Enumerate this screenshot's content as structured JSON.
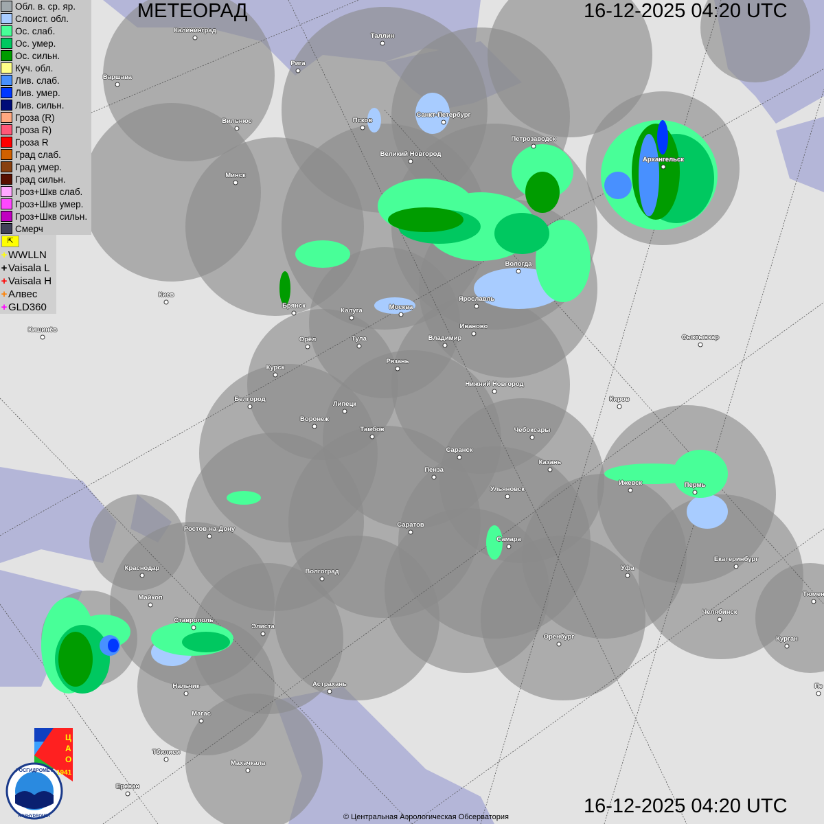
{
  "header": {
    "title": "МЕТЕОРАД",
    "timestamp_top": "16-12-2025  04:20 UTC",
    "timestamp_bottom": "16-12-2025  04:20 UTC"
  },
  "legend": [
    {
      "label": "Обл. в. ср. яр.",
      "color": "#a0a8ac"
    },
    {
      "label": "Слоист. обл.",
      "color": "#a8ccff"
    },
    {
      "label": "Ос. слаб.",
      "color": "#48ff98"
    },
    {
      "label": "Ос. умер.",
      "color": "#00c860"
    },
    {
      "label": "Ос. сильн.",
      "color": "#009c00"
    },
    {
      "label": "Куч. обл.",
      "color": "#ffff88"
    },
    {
      "label": "Лив. слаб.",
      "color": "#4890ff"
    },
    {
      "label": "Лив. умер.",
      "color": "#0038ff"
    },
    {
      "label": "Лив. сильн.",
      "color": "#000c78"
    },
    {
      "label": "Гроза (R)",
      "color": "#ffa880"
    },
    {
      "label": "Гроза R)",
      "color": "#ff5878"
    },
    {
      "label": "Гроза R",
      "color": "#ff0000"
    },
    {
      "label": "Град слаб.",
      "color": "#d06000"
    },
    {
      "label": "Град умер.",
      "color": "#884010"
    },
    {
      "label": "Град сильн.",
      "color": "#581000"
    },
    {
      "label": "Гроз+Шкв слаб.",
      "color": "#ffa8ff"
    },
    {
      "label": "Гроз+Шкв умер.",
      "color": "#ff48ff"
    },
    {
      "label": "Гроз+Шкв сильн.",
      "color": "#c000c0"
    },
    {
      "label": "Смерч",
      "color": "#404058"
    }
  ],
  "lightning_flag_icon": "flag-icon",
  "lightning": [
    {
      "label": "WWLLN",
      "color": "#ffff00"
    },
    {
      "label": "Vaisala L",
      "color": "#000000"
    },
    {
      "label": "Vaisala H",
      "color": "#ff0000"
    },
    {
      "label": "Алвес",
      "color": "#ff8000"
    },
    {
      "label": "GLD360",
      "color": "#ff00ff"
    }
  ],
  "cities": [
    "Калининград",
    "Таллин",
    "Рига",
    "Варшава",
    "Вильнюс",
    "Псков",
    "Санкт-Петербург",
    "Великий Новгород",
    "Петрозаводск",
    "Архангельск",
    "Минск",
    "Вологда",
    "Брянск",
    "Калуга",
    "Москва",
    "Ярославль",
    "Иваново",
    "Киев",
    "Кишинёв",
    "Орёл",
    "Тула",
    "Владимир",
    "Сыктывкар",
    "Рязань",
    "Курск",
    "Нижний Новгород",
    "Белгород",
    "Киров",
    "Липецк",
    "Воронеж",
    "Тамбов",
    "Чебоксары",
    "Саранск",
    "Пенза",
    "Казань",
    "Ижевск",
    "Пермь",
    "Ульяновск",
    "Ростов-на-Дону",
    "Саратов",
    "Самара",
    "Екатеринбург",
    "Краснодар",
    "Уфа",
    "Волгоград",
    "Майкоп",
    "Тюмен",
    "Челябинск",
    "Ставрополь",
    "Элиста",
    "Оренбург",
    "Курган",
    "Астрахань",
    "Нальчик",
    "Пе",
    "Магас",
    "Махачкала",
    "Тбилиси",
    "Ереван"
  ],
  "logos": {
    "cao": "ЦАО 1941",
    "roshydromet": "РОСГИДРОМЕТ ROSHYDROMET"
  },
  "copyright": "© Центральная Аэрологическая Обсерватория"
}
